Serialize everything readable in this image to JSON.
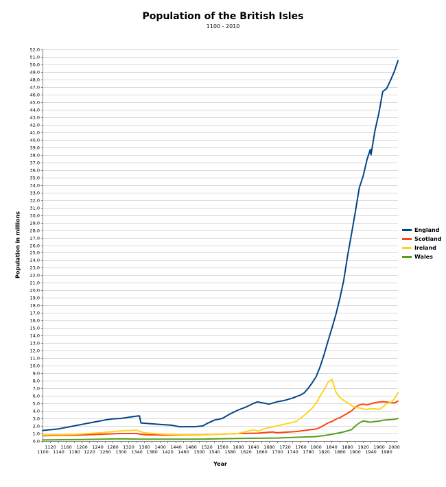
{
  "chart_data": {
    "type": "line",
    "title": "Population of the British Isles",
    "subtitle": "1100 - 2010",
    "xlabel": "Year",
    "ylabel": "Population in millions",
    "xlim": [
      1100,
      2010
    ],
    "ylim": [
      0,
      52
    ],
    "x_tick_step": 20,
    "y_tick_step": 1,
    "decimal_separator": ",",
    "grid": "horizontal",
    "grid_color": "#d9d9d9",
    "axis_color": "#808080",
    "tick_label_color": "#000000",
    "legend_position": "right",
    "x_ticks": [
      1100,
      1120,
      1140,
      1160,
      1180,
      1200,
      1220,
      1240,
      1260,
      1280,
      1300,
      1320,
      1340,
      1360,
      1380,
      1400,
      1420,
      1440,
      1460,
      1480,
      1500,
      1520,
      1540,
      1560,
      1580,
      1600,
      1620,
      1640,
      1660,
      1680,
      1700,
      1720,
      1740,
      1760,
      1780,
      1800,
      1820,
      1840,
      1860,
      1880,
      1900,
      1920,
      1940,
      1960,
      1980,
      2000
    ],
    "y_ticks": [
      0,
      1,
      2,
      3,
      4,
      5,
      6,
      7,
      8,
      9,
      10,
      11,
      12,
      13,
      14,
      15,
      16,
      17,
      18,
      19,
      20,
      21,
      22,
      23,
      24,
      25,
      26,
      27,
      28,
      29,
      30,
      31,
      32,
      33,
      34,
      35,
      36,
      37,
      38,
      39,
      40,
      41,
      42,
      43,
      44,
      45,
      46,
      47,
      48,
      49,
      50,
      51,
      52
    ],
    "series": [
      {
        "name": "England",
        "color": "#004586",
        "points": [
          [
            1100,
            1.4
          ],
          [
            1120,
            1.5
          ],
          [
            1140,
            1.6
          ],
          [
            1160,
            1.8
          ],
          [
            1180,
            2.0
          ],
          [
            1200,
            2.2
          ],
          [
            1220,
            2.4
          ],
          [
            1240,
            2.6
          ],
          [
            1260,
            2.8
          ],
          [
            1280,
            2.95
          ],
          [
            1300,
            3.0
          ],
          [
            1320,
            3.15
          ],
          [
            1340,
            3.3
          ],
          [
            1348,
            3.35
          ],
          [
            1352,
            2.4
          ],
          [
            1377,
            2.3
          ],
          [
            1400,
            2.2
          ],
          [
            1430,
            2.1
          ],
          [
            1450,
            1.9
          ],
          [
            1470,
            1.9
          ],
          [
            1490,
            1.9
          ],
          [
            1510,
            2.0
          ],
          [
            1522,
            2.35
          ],
          [
            1541,
            2.8
          ],
          [
            1560,
            3.0
          ],
          [
            1580,
            3.6
          ],
          [
            1600,
            4.1
          ],
          [
            1620,
            4.5
          ],
          [
            1640,
            5.0
          ],
          [
            1650,
            5.2
          ],
          [
            1660,
            5.1
          ],
          [
            1680,
            4.9
          ],
          [
            1700,
            5.2
          ],
          [
            1720,
            5.4
          ],
          [
            1740,
            5.7
          ],
          [
            1750,
            5.9
          ],
          [
            1760,
            6.1
          ],
          [
            1770,
            6.4
          ],
          [
            1780,
            7.0
          ],
          [
            1790,
            7.7
          ],
          [
            1801,
            8.6
          ],
          [
            1811,
            9.9
          ],
          [
            1821,
            11.5
          ],
          [
            1831,
            13.3
          ],
          [
            1841,
            15.0
          ],
          [
            1851,
            16.8
          ],
          [
            1861,
            18.9
          ],
          [
            1871,
            21.3
          ],
          [
            1881,
            24.6
          ],
          [
            1891,
            27.5
          ],
          [
            1901,
            30.5
          ],
          [
            1911,
            33.6
          ],
          [
            1921,
            35.2
          ],
          [
            1931,
            37.4
          ],
          [
            1939,
            38.7
          ],
          [
            1941,
            38.0
          ],
          [
            1951,
            41.2
          ],
          [
            1961,
            43.5
          ],
          [
            1971,
            46.4
          ],
          [
            1981,
            46.8
          ],
          [
            1991,
            47.9
          ],
          [
            2001,
            49.1
          ],
          [
            2010,
            50.5
          ]
        ]
      },
      {
        "name": "Scotland",
        "color": "#ff420e",
        "points": [
          [
            1100,
            0.7
          ],
          [
            1150,
            0.75
          ],
          [
            1200,
            0.8
          ],
          [
            1250,
            0.9
          ],
          [
            1300,
            1.0
          ],
          [
            1340,
            1.0
          ],
          [
            1360,
            0.85
          ],
          [
            1400,
            0.8
          ],
          [
            1450,
            0.8
          ],
          [
            1500,
            0.8
          ],
          [
            1550,
            0.9
          ],
          [
            1600,
            1.0
          ],
          [
            1650,
            1.05
          ],
          [
            1690,
            1.2
          ],
          [
            1700,
            1.1
          ],
          [
            1750,
            1.27
          ],
          [
            1770,
            1.4
          ],
          [
            1801,
            1.6
          ],
          [
            1811,
            1.8
          ],
          [
            1821,
            2.1
          ],
          [
            1831,
            2.4
          ],
          [
            1841,
            2.6
          ],
          [
            1851,
            2.9
          ],
          [
            1861,
            3.1
          ],
          [
            1871,
            3.4
          ],
          [
            1881,
            3.7
          ],
          [
            1891,
            4.0
          ],
          [
            1901,
            4.5
          ],
          [
            1911,
            4.8
          ],
          [
            1921,
            4.9
          ],
          [
            1931,
            4.8
          ],
          [
            1951,
            5.1
          ],
          [
            1961,
            5.18
          ],
          [
            1971,
            5.23
          ],
          [
            1981,
            5.18
          ],
          [
            1991,
            5.1
          ],
          [
            2001,
            5.06
          ],
          [
            2010,
            5.3
          ]
        ]
      },
      {
        "name": "Ireland",
        "color": "#ffd320",
        "points": [
          [
            1100,
            0.8
          ],
          [
            1150,
            0.85
          ],
          [
            1200,
            0.95
          ],
          [
            1250,
            1.1
          ],
          [
            1300,
            1.35
          ],
          [
            1340,
            1.45
          ],
          [
            1360,
            1.1
          ],
          [
            1400,
            0.95
          ],
          [
            1450,
            0.85
          ],
          [
            1500,
            0.8
          ],
          [
            1550,
            0.9
          ],
          [
            1600,
            1.0
          ],
          [
            1641,
            1.5
          ],
          [
            1652,
            1.3
          ],
          [
            1672,
            1.7
          ],
          [
            1700,
            2.0
          ],
          [
            1725,
            2.3
          ],
          [
            1750,
            2.6
          ],
          [
            1772,
            3.5
          ],
          [
            1791,
            4.4
          ],
          [
            1800,
            5.0
          ],
          [
            1811,
            6.0
          ],
          [
            1821,
            6.8
          ],
          [
            1831,
            7.8
          ],
          [
            1841,
            8.2
          ],
          [
            1851,
            6.5
          ],
          [
            1861,
            5.8
          ],
          [
            1871,
            5.4
          ],
          [
            1881,
            5.1
          ],
          [
            1891,
            4.7
          ],
          [
            1901,
            4.5
          ],
          [
            1911,
            4.4
          ],
          [
            1926,
            4.2
          ],
          [
            1936,
            4.25
          ],
          [
            1951,
            4.3
          ],
          [
            1961,
            4.2
          ],
          [
            1971,
            4.5
          ],
          [
            1981,
            5.0
          ],
          [
            1991,
            5.1
          ],
          [
            2001,
            5.6
          ],
          [
            2010,
            6.4
          ]
        ]
      },
      {
        "name": "Wales",
        "color": "#579d1c",
        "points": [
          [
            1100,
            0.15
          ],
          [
            1200,
            0.2
          ],
          [
            1300,
            0.3
          ],
          [
            1350,
            0.25
          ],
          [
            1400,
            0.25
          ],
          [
            1500,
            0.25
          ],
          [
            1550,
            0.3
          ],
          [
            1600,
            0.35
          ],
          [
            1650,
            0.37
          ],
          [
            1700,
            0.4
          ],
          [
            1750,
            0.5
          ],
          [
            1801,
            0.59
          ],
          [
            1811,
            0.67
          ],
          [
            1821,
            0.72
          ],
          [
            1831,
            0.81
          ],
          [
            1841,
            0.91
          ],
          [
            1851,
            1.0
          ],
          [
            1861,
            1.1
          ],
          [
            1871,
            1.22
          ],
          [
            1881,
            1.36
          ],
          [
            1891,
            1.52
          ],
          [
            1901,
            2.0
          ],
          [
            1911,
            2.4
          ],
          [
            1921,
            2.66
          ],
          [
            1931,
            2.59
          ],
          [
            1939,
            2.49
          ],
          [
            1951,
            2.6
          ],
          [
            1961,
            2.64
          ],
          [
            1971,
            2.74
          ],
          [
            1981,
            2.81
          ],
          [
            1991,
            2.84
          ],
          [
            2001,
            2.9
          ],
          [
            2010,
            3.0
          ]
        ]
      }
    ]
  }
}
